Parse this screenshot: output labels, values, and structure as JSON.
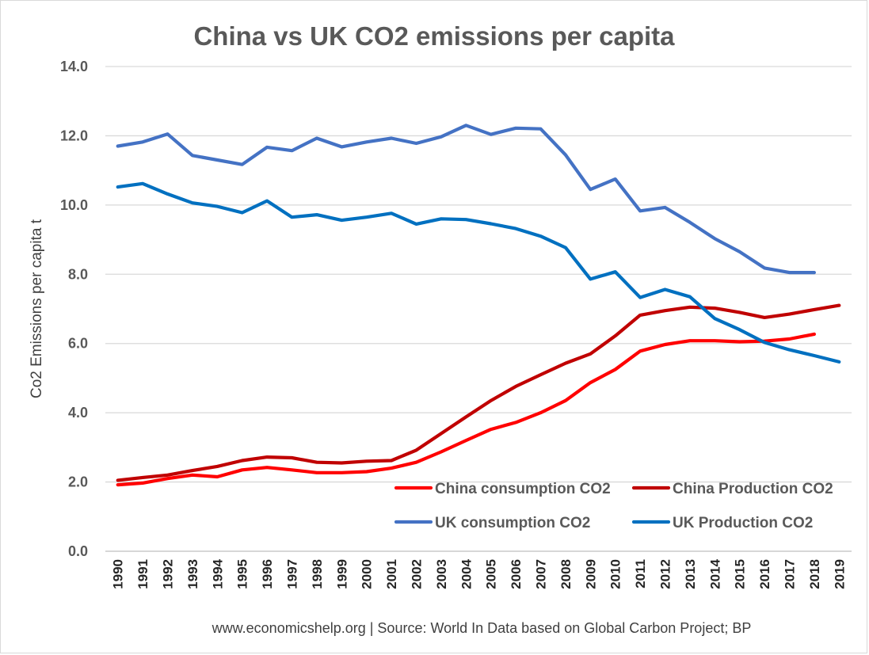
{
  "chart_data": {
    "type": "line",
    "title": "China vs UK CO2 emissions per capita",
    "ylabel": "Co2 Emissions per capita t",
    "xlabel": "",
    "ylim": [
      0,
      14
    ],
    "yticks": [
      "0.0",
      "2.0",
      "4.0",
      "6.0",
      "8.0",
      "10.0",
      "12.0",
      "14.0"
    ],
    "ytick_values": [
      0,
      2,
      4,
      6,
      8,
      10,
      12,
      14
    ],
    "grid": true,
    "legend_position": "bottom-right",
    "categories": [
      "1990",
      "1991",
      "1992",
      "1993",
      "1994",
      "1995",
      "1996",
      "1997",
      "1998",
      "1999",
      "2000",
      "2001",
      "2002",
      "2003",
      "2004",
      "2005",
      "2006",
      "2007",
      "2008",
      "2009",
      "2010",
      "2011",
      "2012",
      "2013",
      "2014",
      "2015",
      "2016",
      "2017",
      "2018",
      "2019"
    ],
    "series": [
      {
        "name": "China consumption CO2",
        "color": "#ff0000",
        "values": [
          1.92,
          1.97,
          2.1,
          2.2,
          2.15,
          2.35,
          2.42,
          2.35,
          2.27,
          2.27,
          2.3,
          2.4,
          2.57,
          2.87,
          3.2,
          3.52,
          3.72,
          4.0,
          4.35,
          4.87,
          5.25,
          5.78,
          5.97,
          6.08,
          6.08,
          6.05,
          6.07,
          6.13,
          6.27,
          null
        ]
      },
      {
        "name": "China Production CO2",
        "color": "#c00000",
        "values": [
          2.05,
          2.13,
          2.2,
          2.33,
          2.45,
          2.62,
          2.72,
          2.7,
          2.57,
          2.55,
          2.6,
          2.62,
          2.92,
          3.4,
          3.88,
          4.35,
          4.76,
          5.1,
          5.43,
          5.7,
          6.22,
          6.82,
          6.95,
          7.05,
          7.02,
          6.9,
          6.75,
          6.85,
          6.98,
          7.1
        ]
      },
      {
        "name": "UK consumption CO2",
        "color": "#4472c4",
        "values": [
          11.7,
          11.82,
          12.05,
          11.43,
          11.3,
          11.17,
          11.67,
          11.57,
          11.93,
          11.68,
          11.82,
          11.93,
          11.78,
          11.97,
          12.3,
          12.04,
          12.22,
          12.2,
          11.45,
          10.45,
          10.75,
          9.83,
          9.93,
          9.5,
          9.03,
          8.65,
          8.18,
          8.05,
          8.05,
          null
        ]
      },
      {
        "name": "UK Production CO2",
        "color": "#0070c0",
        "values": [
          10.52,
          10.62,
          10.32,
          10.06,
          9.96,
          9.78,
          10.12,
          9.65,
          9.72,
          9.56,
          9.65,
          9.76,
          9.45,
          9.6,
          9.58,
          9.46,
          9.32,
          9.1,
          8.77,
          7.86,
          8.07,
          7.33,
          7.56,
          7.35,
          6.72,
          6.4,
          6.03,
          5.82,
          5.65,
          5.47
        ]
      }
    ],
    "source": "www.economicshelp.org | Source: World In Data based on Global Carbon Project; BP"
  }
}
